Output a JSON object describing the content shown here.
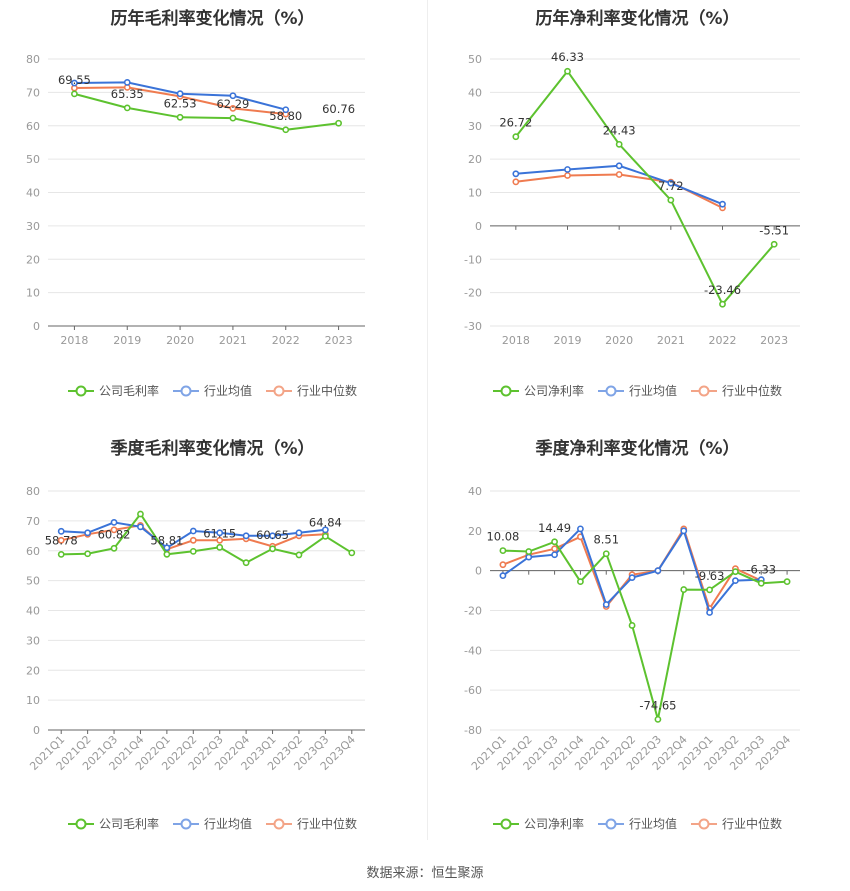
{
  "source": "数据来源：恒生聚源",
  "chart_data": [
    {
      "type": "line",
      "title": "历年毛利率变化情况（%）",
      "categories": [
        "2018",
        "2019",
        "2020",
        "2021",
        "2022",
        "2023"
      ],
      "ylim": [
        0,
        80
      ],
      "yticks": [
        0,
        10,
        20,
        30,
        40,
        50,
        60,
        70,
        80
      ],
      "rotate_x": false,
      "series": [
        {
          "name": "公司毛利率",
          "color": "#5dc22f",
          "values": [
            69.55,
            65.35,
            62.53,
            62.29,
            58.8,
            60.76
          ]
        },
        {
          "name": "行业均值",
          "color": "#3a73d8",
          "values": [
            72.8,
            73.0,
            69.6,
            69.0,
            64.8,
            null
          ]
        },
        {
          "name": "行业中位数",
          "color": "#ef7b50",
          "values": [
            71.3,
            71.5,
            68.8,
            65.2,
            63.5,
            null
          ]
        }
      ],
      "labels": [
        {
          "series": 0,
          "index": 0,
          "text": "69.55"
        },
        {
          "series": 0,
          "index": 1,
          "text": "65.35"
        },
        {
          "series": 0,
          "index": 2,
          "text": "62.53"
        },
        {
          "series": 0,
          "index": 3,
          "text": "62.29"
        },
        {
          "series": 0,
          "index": 4,
          "text": "58.80"
        },
        {
          "series": 0,
          "index": 5,
          "text": "60.76"
        }
      ],
      "legend": [
        {
          "label": "公司毛利率",
          "color": "#5dc22f"
        },
        {
          "label": "行业均值",
          "color": "#7fa4e6"
        },
        {
          "label": "行业中位数",
          "color": "#f3a487"
        }
      ]
    },
    {
      "type": "line",
      "title": "历年净利率变化情况（%）",
      "categories": [
        "2018",
        "2019",
        "2020",
        "2021",
        "2022",
        "2023"
      ],
      "ylim": [
        -30,
        50
      ],
      "yticks": [
        -30,
        -20,
        -10,
        0,
        10,
        20,
        30,
        40,
        50
      ],
      "rotate_x": false,
      "series": [
        {
          "name": "公司净利率",
          "color": "#5dc22f",
          "values": [
            26.72,
            46.33,
            24.43,
            7.72,
            -23.46,
            -5.51
          ]
        },
        {
          "name": "行业均值",
          "color": "#3a73d8",
          "values": [
            15.6,
            16.9,
            18.0,
            12.8,
            6.5,
            null
          ]
        },
        {
          "name": "行业中位数",
          "color": "#ef7b50",
          "values": [
            13.2,
            15.1,
            15.4,
            13.1,
            5.4,
            null
          ]
        }
      ],
      "labels": [
        {
          "series": 0,
          "index": 0,
          "text": "26.72"
        },
        {
          "series": 0,
          "index": 1,
          "text": "46.33"
        },
        {
          "series": 0,
          "index": 2,
          "text": "24.43"
        },
        {
          "series": 0,
          "index": 3,
          "text": "7.72"
        },
        {
          "series": 0,
          "index": 4,
          "text": "-23.46"
        },
        {
          "series": 0,
          "index": 5,
          "text": "-5.51"
        }
      ],
      "legend": [
        {
          "label": "公司净利率",
          "color": "#5dc22f"
        },
        {
          "label": "行业均值",
          "color": "#7fa4e6"
        },
        {
          "label": "行业中位数",
          "color": "#f3a487"
        }
      ]
    },
    {
      "type": "line",
      "title": "季度毛利率变化情况（%）",
      "categories": [
        "2021Q1",
        "2021Q2",
        "2021Q3",
        "2021Q4",
        "2022Q1",
        "2022Q2",
        "2022Q3",
        "2022Q4",
        "2023Q1",
        "2023Q2",
        "2023Q3",
        "2023Q4"
      ],
      "ylim": [
        0,
        80
      ],
      "yticks": [
        0,
        10,
        20,
        30,
        40,
        50,
        60,
        70,
        80
      ],
      "rotate_x": true,
      "series": [
        {
          "name": "公司毛利率",
          "color": "#5dc22f",
          "values": [
            58.78,
            59.0,
            60.82,
            72.3,
            58.81,
            59.8,
            61.15,
            56.0,
            60.65,
            58.6,
            64.84,
            59.3
          ]
        },
        {
          "name": "行业均值",
          "color": "#3a73d8",
          "values": [
            66.5,
            66.0,
            69.5,
            68.0,
            61.0,
            66.6,
            66.0,
            65.0,
            65.0,
            66.0,
            67.0,
            null
          ]
        },
        {
          "name": "行业中位数",
          "color": "#ef7b50",
          "values": [
            63.5,
            65.5,
            67.0,
            68.5,
            60.5,
            63.5,
            63.5,
            64.0,
            61.5,
            65.0,
            65.5,
            null
          ]
        }
      ],
      "labels": [
        {
          "series": 0,
          "index": 0,
          "text": "58.78"
        },
        {
          "series": 0,
          "index": 2,
          "text": "60.82"
        },
        {
          "series": 0,
          "index": 4,
          "text": "58.81"
        },
        {
          "series": 0,
          "index": 6,
          "text": "61.15"
        },
        {
          "series": 0,
          "index": 8,
          "text": "60.65"
        },
        {
          "series": 0,
          "index": 10,
          "text": "64.84"
        }
      ],
      "legend": [
        {
          "label": "公司毛利率",
          "color": "#5dc22f"
        },
        {
          "label": "行业均值",
          "color": "#7fa4e6"
        },
        {
          "label": "行业中位数",
          "color": "#f3a487"
        }
      ]
    },
    {
      "type": "line",
      "title": "季度净利率变化情况（%）",
      "categories": [
        "2021Q1",
        "2021Q2",
        "2021Q3",
        "2021Q4",
        "2022Q1",
        "2022Q2",
        "2022Q3",
        "2022Q4",
        "2023Q1",
        "2023Q2",
        "2023Q3",
        "2023Q4"
      ],
      "ylim": [
        -80,
        40
      ],
      "yticks": [
        -80,
        -60,
        -40,
        -20,
        0,
        20,
        40
      ],
      "rotate_x": true,
      "series": [
        {
          "name": "公司净利率",
          "color": "#5dc22f",
          "values": [
            10.08,
            9.6,
            14.49,
            -5.5,
            8.51,
            -27.5,
            -74.65,
            -9.5,
            -9.63,
            -0.5,
            -6.33,
            -5.5
          ]
        },
        {
          "name": "行业均值",
          "color": "#3a73d8",
          "values": [
            -2.5,
            6.8,
            8.0,
            21.0,
            -17.0,
            -3.5,
            0.0,
            20.0,
            -21.0,
            -5.0,
            -4.5,
            null
          ]
        },
        {
          "name": "行业中位数",
          "color": "#ef7b50",
          "values": [
            3.0,
            8.0,
            11.0,
            17.0,
            -18.0,
            -2.0,
            0.0,
            21.0,
            -19.0,
            1.0,
            -5.0,
            null
          ]
        }
      ],
      "labels": [
        {
          "series": 0,
          "index": 0,
          "text": "10.08"
        },
        {
          "series": 0,
          "index": 2,
          "text": "14.49"
        },
        {
          "series": 0,
          "index": 4,
          "text": "8.51"
        },
        {
          "series": 0,
          "index": 6,
          "text": "-74.65"
        },
        {
          "series": 0,
          "index": 8,
          "text": "-9.63"
        },
        {
          "series": 0,
          "index": 10,
          "text": "-6.33"
        }
      ],
      "legend": [
        {
          "label": "公司净利率",
          "color": "#5dc22f"
        },
        {
          "label": "行业均值",
          "color": "#7fa4e6"
        },
        {
          "label": "行业中位数",
          "color": "#f3a487"
        }
      ]
    }
  ]
}
